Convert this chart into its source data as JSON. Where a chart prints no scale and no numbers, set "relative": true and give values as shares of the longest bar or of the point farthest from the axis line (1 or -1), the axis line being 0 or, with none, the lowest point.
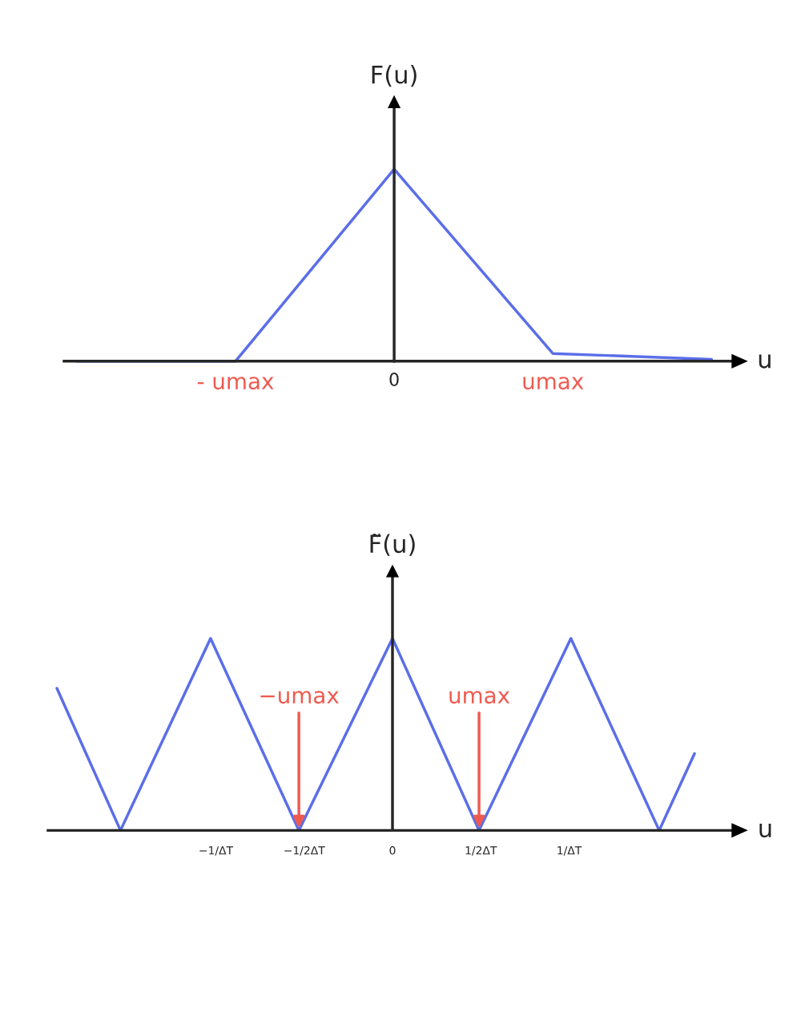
{
  "chart_data": [
    {
      "type": "line",
      "ylabel": "F(u)",
      "xlabel": "u",
      "relative": true,
      "categories": [
        null,
        "- umax",
        "0",
        "umax",
        null
      ],
      "series": [
        {
          "color": "#5b6ee8",
          "values": [
            0,
            0,
            1,
            0.04,
            0.01
          ]
        }
      ]
    },
    {
      "type": "line",
      "ylabel": "F̃(u)",
      "xlabel": "u",
      "relative": true,
      "xlim": [
        -1.95,
        1.95
      ],
      "xticks": [
        {
          "value": -1,
          "label": "−1/ΔT"
        },
        {
          "value": -0.5,
          "label": "−1/2ΔT"
        },
        0,
        {
          "value": 0.5,
          "label": "1/2ΔT"
        },
        {
          "value": 1,
          "label": "1/ΔT"
        }
      ],
      "series": [
        {
          "color": "#5b6ee8",
          "x": [
            -1.9,
            -1.54,
            -1.03,
            -0.53,
            0,
            0.49,
            1.01,
            1.51,
            1.71
          ],
          "values": [
            0.74,
            0,
            1,
            0,
            1,
            0,
            1,
            0,
            0.4
          ]
        }
      ],
      "annotations": [
        {
          "text": "−umax",
          "x": -0.53,
          "y": 0
        },
        {
          "text": "umax",
          "x": 0.49,
          "y": 0
        }
      ]
    }
  ]
}
